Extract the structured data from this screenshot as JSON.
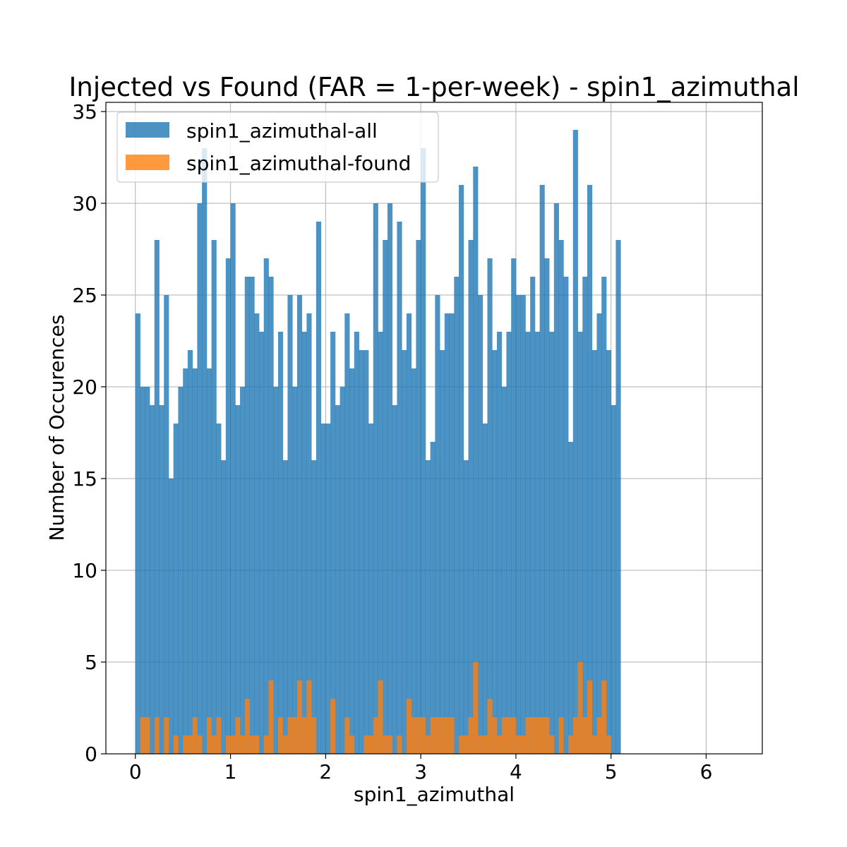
{
  "chart_data": {
    "type": "bar",
    "title": "Injected vs Found (FAR = 1-per-week) - spin1_azimuthal",
    "xlabel": "spin1_azimuthal",
    "ylabel": "Number of Occurences",
    "xlim": [
      -0.31,
      6.59
    ],
    "ylim": [
      0,
      35.5
    ],
    "xticks": [
      0,
      1,
      2,
      3,
      4,
      5,
      6
    ],
    "yticks": [
      0,
      5,
      10,
      15,
      20,
      25,
      30,
      35
    ],
    "grid": true,
    "legend_position": "top-left",
    "bin_start": 0.0,
    "bin_width": 0.05,
    "series": [
      {
        "name": "spin1_azimuthal-all",
        "color": "#1f77b4",
        "opacity": 0.8,
        "values": [
          24,
          20,
          20,
          19,
          28,
          19,
          25,
          15,
          18,
          20,
          21,
          22,
          21,
          30,
          33,
          21,
          28,
          18,
          16,
          27,
          30,
          19,
          20,
          26,
          26,
          24,
          23,
          27,
          26,
          20,
          23,
          16,
          25,
          20,
          25,
          23,
          24,
          16,
          29,
          18,
          18,
          23,
          19,
          20,
          24,
          21,
          23,
          22,
          22,
          18,
          30,
          23,
          28,
          30,
          19,
          29,
          22,
          24,
          21,
          28,
          33,
          16,
          17,
          25,
          22,
          24,
          24,
          26,
          31,
          16,
          28,
          32,
          25,
          18,
          27,
          22,
          23,
          20,
          23,
          27,
          25,
          25,
          23,
          26,
          23,
          31,
          27,
          23,
          30,
          28,
          26,
          17,
          34,
          23,
          26,
          31,
          22,
          24,
          26,
          22,
          19,
          28
        ]
      },
      {
        "name": "spin1_azimuthal-found",
        "color": "#ff7f0e",
        "opacity": 0.8,
        "values": [
          0,
          2,
          2,
          0,
          2,
          0,
          2,
          0,
          1,
          0,
          1,
          1,
          2,
          1,
          0,
          2,
          1,
          2,
          0,
          1,
          1,
          2,
          1,
          3,
          1,
          1,
          0,
          1,
          4,
          0,
          2,
          1,
          2,
          2,
          4,
          2,
          4,
          2,
          0,
          0,
          0,
          3,
          0,
          0,
          2,
          1,
          0,
          0,
          1,
          1,
          2,
          4,
          1,
          1,
          0,
          1,
          0,
          3,
          2,
          2,
          2,
          1,
          2,
          2,
          2,
          2,
          2,
          0,
          1,
          1,
          2,
          5,
          1,
          1,
          3,
          2,
          1,
          2,
          2,
          2,
          1,
          1,
          2,
          2,
          2,
          2,
          2,
          1,
          0,
          2,
          0,
          1,
          2,
          5,
          2,
          4,
          1,
          2,
          4,
          1,
          0,
          0
        ]
      }
    ]
  }
}
